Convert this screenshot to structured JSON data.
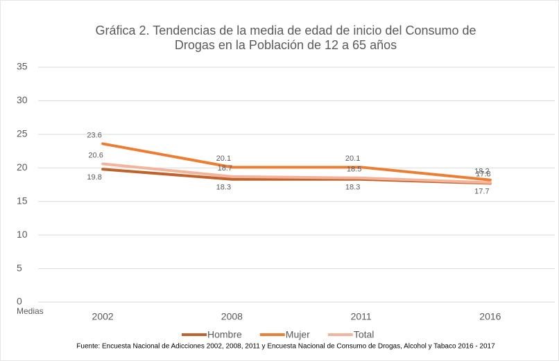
{
  "chart_data": {
    "type": "line",
    "title": [
      "Gráfica 2. Tendencias de la media de edad de inicio del Consumo de",
      "Drogas en la Población de 12 a 65 años"
    ],
    "y_label": "Medias",
    "categories": [
      "2002",
      "2008",
      "2011",
      "2016"
    ],
    "series": [
      {
        "name": "Hombre",
        "color": "#c0622b",
        "values": [
          19.8,
          18.3,
          18.3,
          17.7
        ]
      },
      {
        "name": "Mujer",
        "color": "#ed7d31",
        "values": [
          23.6,
          20.1,
          20.1,
          18.2
        ]
      },
      {
        "name": "Total",
        "color": "#f4b39a",
        "values": [
          20.6,
          18.7,
          18.5,
          17.8
        ]
      }
    ],
    "ylim": [
      0,
      35
    ],
    "yticks": [
      0,
      5,
      10,
      15,
      20,
      25,
      30,
      35
    ],
    "grid": true,
    "legend": "bottom",
    "source": "Fuente: Encuesta Nacional de Adicciones 2002, 2008, 2011 y Encuesta Nacional de Consumo de Drogas, Alcohol y Tabaco 2016 - 2017"
  }
}
